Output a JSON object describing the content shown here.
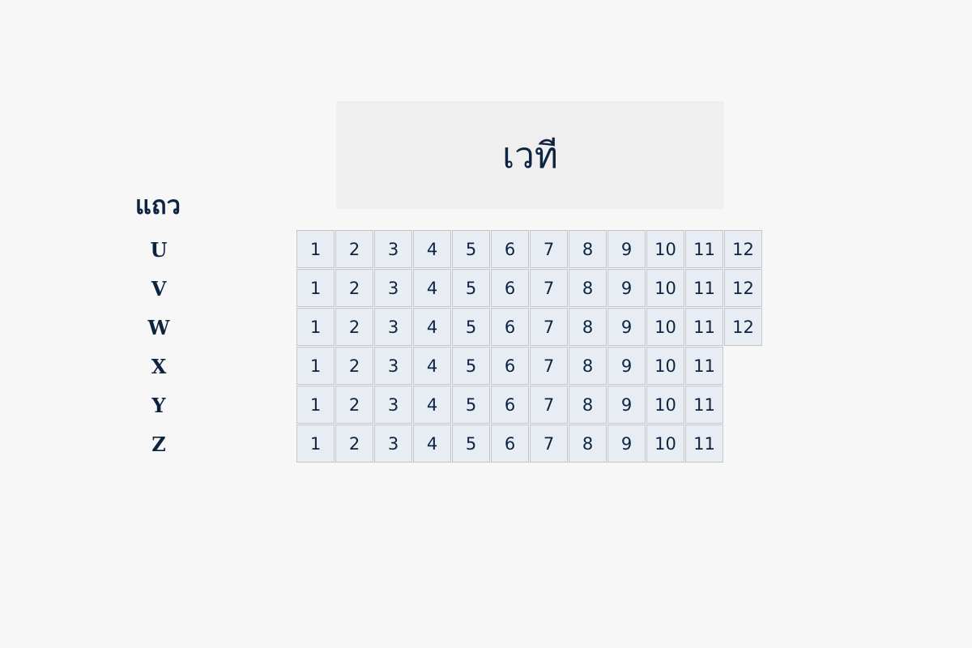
{
  "stage": {
    "label": "เวที"
  },
  "rows_title": "แถว",
  "colors": {
    "text": "#0d2440",
    "seat_bg": "#e8edf4",
    "seat_border": "#c3c6cb",
    "stage_bg": "#efefef",
    "background": "#f7f7f7"
  },
  "rows": [
    {
      "label": "U",
      "seats": [
        "1",
        "2",
        "3",
        "4",
        "5",
        "6",
        "7",
        "8",
        "9",
        "10",
        "11",
        "12"
      ]
    },
    {
      "label": "V",
      "seats": [
        "1",
        "2",
        "3",
        "4",
        "5",
        "6",
        "7",
        "8",
        "9",
        "10",
        "11",
        "12"
      ]
    },
    {
      "label": "W",
      "seats": [
        "1",
        "2",
        "3",
        "4",
        "5",
        "6",
        "7",
        "8",
        "9",
        "10",
        "11",
        "12"
      ]
    },
    {
      "label": "X",
      "seats": [
        "1",
        "2",
        "3",
        "4",
        "5",
        "6",
        "7",
        "8",
        "9",
        "10",
        "11"
      ]
    },
    {
      "label": "Y",
      "seats": [
        "1",
        "2",
        "3",
        "4",
        "5",
        "6",
        "7",
        "8",
        "9",
        "10",
        "11"
      ]
    },
    {
      "label": "Z",
      "seats": [
        "1",
        "2",
        "3",
        "4",
        "5",
        "6",
        "7",
        "8",
        "9",
        "10",
        "11"
      ]
    }
  ]
}
